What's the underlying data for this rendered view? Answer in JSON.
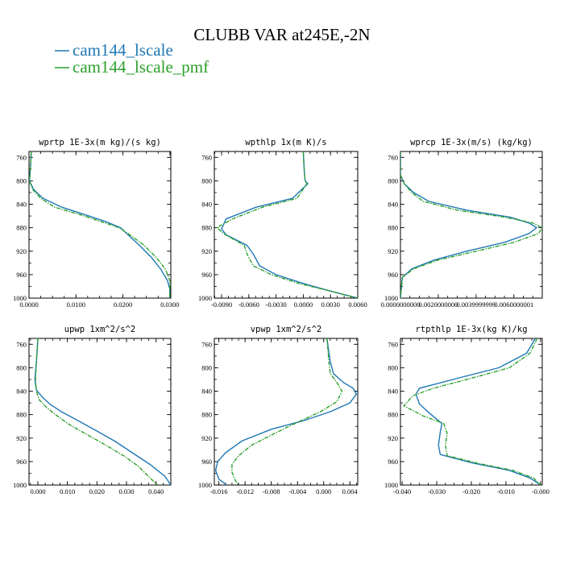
{
  "figure": {
    "title": "CLUBB VAR at245E,-2N",
    "legend": [
      {
        "label": "cam144_lscale",
        "color": "#1f77b4"
      },
      {
        "label": "cam144_lscale_pmf",
        "color": "#2ca02c"
      }
    ]
  },
  "chart_data": [
    {
      "type": "line",
      "title": "wprtp  1E-3x(m kg)/(s kg)",
      "xlim": [
        0.0,
        0.0302
      ],
      "ylim": [
        1000,
        750
      ],
      "y_inverted": true,
      "xticks": [
        0.0,
        0.01,
        0.02,
        0.03
      ],
      "xtick_labels": [
        "0.0000",
        "0.0100",
        "0.0200",
        "0.0300"
      ],
      "yticks": [
        760,
        800,
        840,
        880,
        920,
        960,
        1000
      ],
      "ytick_labels": [
        "760",
        "800",
        "840",
        "880",
        "920",
        "960",
        "1000"
      ],
      "series": [
        {
          "name": "cam144_lscale",
          "color": "#1f77b4",
          "dash": false,
          "points": [
            [
              0.0005,
              750
            ],
            [
              0.0003,
              780
            ],
            [
              0.0001,
              800
            ],
            [
              0.001,
              815
            ],
            [
              0.003,
              830
            ],
            [
              0.007,
              845
            ],
            [
              0.012,
              858
            ],
            [
              0.0165,
              870
            ],
            [
              0.0195,
              880
            ],
            [
              0.0215,
              895
            ],
            [
              0.0235,
              910
            ],
            [
              0.026,
              930
            ],
            [
              0.028,
              950
            ],
            [
              0.0295,
              970
            ],
            [
              0.03,
              985
            ],
            [
              0.03,
              1000
            ]
          ]
        },
        {
          "name": "cam144_lscale_pmf",
          "color": "#2ca02c",
          "dash": true,
          "points": [
            [
              0.0005,
              750
            ],
            [
              0.0003,
              780
            ],
            [
              0.0001,
              800
            ],
            [
              0.0008,
              815
            ],
            [
              0.0025,
              830
            ],
            [
              0.0055,
              845
            ],
            [
              0.011,
              858
            ],
            [
              0.0155,
              870
            ],
            [
              0.0192,
              880
            ],
            [
              0.022,
              895
            ],
            [
              0.0245,
              910
            ],
            [
              0.027,
              930
            ],
            [
              0.029,
              950
            ],
            [
              0.03,
              970
            ],
            [
              0.03,
              985
            ],
            [
              0.03,
              1000
            ]
          ]
        }
      ]
    },
    {
      "type": "line",
      "title": "wpthlp  1x(m K)/s",
      "xlim": [
        -0.0098,
        0.006
      ],
      "ylim": [
        1000,
        750
      ],
      "y_inverted": true,
      "xticks": [
        -0.009,
        -0.006,
        -0.003,
        0.0,
        0.003,
        0.006
      ],
      "xtick_labels": [
        "-0.0090",
        "-0.0060",
        "-0.0030",
        "0.0000",
        "0.0030",
        "0.0060"
      ],
      "yticks": [
        760,
        800,
        840,
        880,
        920,
        960,
        1000
      ],
      "ytick_labels": [
        "760",
        "800",
        "840",
        "880",
        "920",
        "960",
        "1000"
      ],
      "series": [
        {
          "name": "cam144_lscale",
          "color": "#1f77b4",
          "dash": false,
          "points": [
            [
              0.0,
              750
            ],
            [
              0.0001,
              780
            ],
            [
              0.0002,
              800
            ],
            [
              0.0005,
              805
            ],
            [
              -0.0012,
              830
            ],
            [
              -0.0052,
              845
            ],
            [
              -0.0085,
              865
            ],
            [
              -0.009,
              882
            ],
            [
              -0.0085,
              892
            ],
            [
              -0.0062,
              910
            ],
            [
              -0.0055,
              925
            ],
            [
              -0.0048,
              945
            ],
            [
              -0.003,
              960
            ],
            [
              0.0,
              975
            ],
            [
              0.003,
              988
            ],
            [
              0.006,
              1000
            ]
          ]
        },
        {
          "name": "cam144_lscale_pmf",
          "color": "#2ca02c",
          "dash": true,
          "points": [
            [
              0.0,
              750
            ],
            [
              0.0001,
              780
            ],
            [
              0.0002,
              800
            ],
            [
              0.0004,
              805
            ],
            [
              -0.0007,
              830
            ],
            [
              -0.0045,
              845
            ],
            [
              -0.0078,
              865
            ],
            [
              -0.0095,
              880
            ],
            [
              -0.0088,
              890
            ],
            [
              -0.0065,
              910
            ],
            [
              -0.0062,
              925
            ],
            [
              -0.0055,
              945
            ],
            [
              -0.0035,
              960
            ],
            [
              -0.0005,
              975
            ],
            [
              0.003,
              988
            ],
            [
              0.006,
              1000
            ]
          ]
        }
      ]
    },
    {
      "type": "line",
      "title": "wprcp  1E-3x(m/s) (kg/kg)",
      "xlim": [
        0.0,
        0.0075
      ],
      "ylim": [
        1000,
        750
      ],
      "y_inverted": true,
      "xticks": [
        0.0,
        0.002,
        0.004,
        0.006
      ],
      "xtick_labels": [
        "0.0000000000",
        "0.0020000000",
        "0.0039999999",
        "0.0060000001"
      ],
      "yticks": [
        760,
        800,
        840,
        880,
        920,
        960,
        1000
      ],
      "ytick_labels": [
        "760",
        "800",
        "840",
        "880",
        "920",
        "960",
        "1000"
      ],
      "series": [
        {
          "name": "cam144_lscale",
          "color": "#1f77b4",
          "dash": false,
          "points": [
            [
              0.0,
              750
            ],
            [
              0.0,
              790
            ],
            [
              0.0002,
              805
            ],
            [
              0.0007,
              820
            ],
            [
              0.0015,
              835
            ],
            [
              0.0035,
              850
            ],
            [
              0.0058,
              862
            ],
            [
              0.0068,
              872
            ],
            [
              0.0072,
              880
            ],
            [
              0.0068,
              890
            ],
            [
              0.0055,
              905
            ],
            [
              0.0035,
              920
            ],
            [
              0.0018,
              935
            ],
            [
              0.0006,
              950
            ],
            [
              0.0001,
              965
            ],
            [
              0.0,
              1000
            ]
          ]
        },
        {
          "name": "cam144_lscale_pmf",
          "color": "#2ca02c",
          "dash": true,
          "points": [
            [
              0.0,
              750
            ],
            [
              0.0,
              790
            ],
            [
              0.0002,
              805
            ],
            [
              0.0006,
              820
            ],
            [
              0.0012,
              835
            ],
            [
              0.003,
              850
            ],
            [
              0.0055,
              862
            ],
            [
              0.007,
              872
            ],
            [
              0.0075,
              880
            ],
            [
              0.0073,
              890
            ],
            [
              0.006,
              905
            ],
            [
              0.004,
              920
            ],
            [
              0.002,
              935
            ],
            [
              0.0007,
              950
            ],
            [
              0.0001,
              965
            ],
            [
              0.0,
              1000
            ]
          ]
        }
      ]
    },
    {
      "type": "line",
      "title": "upwp  1xm^2/s^2",
      "xlim": [
        -0.003,
        0.045
      ],
      "ylim": [
        1000,
        750
      ],
      "y_inverted": true,
      "xticks": [
        0.0,
        0.01,
        0.02,
        0.03,
        0.04
      ],
      "xtick_labels": [
        "0.000",
        "0.010",
        "0.020",
        "0.030",
        "0.040"
      ],
      "yticks": [
        760,
        800,
        840,
        880,
        920,
        960,
        1000
      ],
      "ytick_labels": [
        "760",
        "800",
        "840",
        "880",
        "920",
        "960",
        "1000"
      ],
      "series": [
        {
          "name": "cam144_lscale",
          "color": "#1f77b4",
          "dash": false,
          "points": [
            [
              0.0,
              750
            ],
            [
              -0.0005,
              790
            ],
            [
              -0.001,
              820
            ],
            [
              -0.0005,
              838
            ],
            [
              0.0015,
              850
            ],
            [
              0.004,
              862
            ],
            [
              0.008,
              875
            ],
            [
              0.0135,
              890
            ],
            [
              0.02,
              908
            ],
            [
              0.026,
              925
            ],
            [
              0.032,
              945
            ],
            [
              0.038,
              965
            ],
            [
              0.043,
              985
            ],
            [
              0.045,
              1000
            ]
          ]
        },
        {
          "name": "cam144_lscale_pmf",
          "color": "#2ca02c",
          "dash": true,
          "points": [
            [
              0.0,
              750
            ],
            [
              -0.0005,
              790
            ],
            [
              -0.0008,
              820
            ],
            [
              -0.0005,
              840
            ],
            [
              0.0005,
              855
            ],
            [
              0.003,
              868
            ],
            [
              0.0065,
              882
            ],
            [
              0.011,
              898
            ],
            [
              0.017,
              915
            ],
            [
              0.023,
              932
            ],
            [
              0.029,
              950
            ],
            [
              0.034,
              968
            ],
            [
              0.038,
              988
            ],
            [
              0.0405,
              1000
            ]
          ]
        }
      ]
    },
    {
      "type": "line",
      "title": "vpwp  1xm^2/s^2",
      "xlim": [
        -0.0167,
        0.0052
      ],
      "ylim": [
        1000,
        750
      ],
      "y_inverted": true,
      "xticks": [
        -0.016,
        -0.012,
        -0.008,
        -0.004,
        0.0,
        0.004
      ],
      "xtick_labels": [
        "-0.016",
        "-0.012",
        "-0.008",
        "-0.004",
        "0.000",
        "0.004"
      ],
      "yticks": [
        760,
        800,
        840,
        880,
        920,
        960,
        1000
      ],
      "ytick_labels": [
        "760",
        "800",
        "840",
        "880",
        "920",
        "960",
        "1000"
      ],
      "series": [
        {
          "name": "cam144_lscale",
          "color": "#1f77b4",
          "dash": false,
          "points": [
            [
              0.0005,
              750
            ],
            [
              0.001,
              790
            ],
            [
              0.0015,
              810
            ],
            [
              0.003,
              825
            ],
            [
              0.0045,
              835
            ],
            [
              0.005,
              845
            ],
            [
              0.004,
              860
            ],
            [
              0.001,
              875
            ],
            [
              -0.003,
              890
            ],
            [
              -0.008,
              905
            ],
            [
              -0.0125,
              925
            ],
            [
              -0.015,
              945
            ],
            [
              -0.0162,
              960
            ],
            [
              -0.0165,
              975
            ],
            [
              -0.016,
              990
            ],
            [
              -0.0148,
              1000
            ]
          ]
        },
        {
          "name": "cam144_lscale_pmf",
          "color": "#2ca02c",
          "dash": true,
          "points": [
            [
              0.0005,
              750
            ],
            [
              0.0008,
              790
            ],
            [
              0.001,
              810
            ],
            [
              0.002,
              825
            ],
            [
              0.0028,
              840
            ],
            [
              0.002,
              858
            ],
            [
              -0.0005,
              875
            ],
            [
              -0.004,
              893
            ],
            [
              -0.0075,
              912
            ],
            [
              -0.011,
              932
            ],
            [
              -0.013,
              950
            ],
            [
              -0.014,
              965
            ],
            [
              -0.014,
              978
            ],
            [
              -0.0135,
              992
            ],
            [
              -0.013,
              1000
            ]
          ]
        }
      ]
    },
    {
      "type": "line",
      "title": "rtpthlp  1E-3x(kg K)/kg",
      "xlim": [
        -0.0405,
        0.0005
      ],
      "ylim": [
        1000,
        750
      ],
      "y_inverted": true,
      "xticks": [
        -0.04,
        -0.03,
        -0.02,
        -0.01,
        0.0
      ],
      "xtick_labels": [
        "-0.040",
        "-0.030",
        "-0.020",
        "-0.010",
        "-0.000"
      ],
      "yticks": [
        760,
        800,
        840,
        880,
        920,
        960,
        1000
      ],
      "ytick_labels": [
        "760",
        "800",
        "840",
        "880",
        "920",
        "960",
        "1000"
      ],
      "series": [
        {
          "name": "cam144_lscale",
          "color": "#1f77b4",
          "dash": false,
          "points": [
            [
              -0.0015,
              750
            ],
            [
              -0.004,
              775
            ],
            [
              -0.012,
              800
            ],
            [
              -0.024,
              818
            ],
            [
              -0.035,
              835
            ],
            [
              -0.036,
              845
            ],
            [
              -0.035,
              862
            ],
            [
              -0.032,
              878
            ],
            [
              -0.0285,
              895
            ],
            [
              -0.029,
              910
            ],
            [
              -0.0295,
              932
            ],
            [
              -0.029,
              948
            ],
            [
              -0.02,
              962
            ],
            [
              -0.009,
              975
            ],
            [
              -0.003,
              988
            ],
            [
              0.0,
              1000
            ]
          ]
        },
        {
          "name": "cam144_lscale_pmf",
          "color": "#2ca02c",
          "dash": true,
          "points": [
            [
              -0.001,
              750
            ],
            [
              -0.003,
              775
            ],
            [
              -0.009,
              800
            ],
            [
              -0.02,
              818
            ],
            [
              -0.031,
              835
            ],
            [
              -0.037,
              848
            ],
            [
              -0.0395,
              865
            ],
            [
              -0.034,
              882
            ],
            [
              -0.028,
              895
            ],
            [
              -0.027,
              912
            ],
            [
              -0.0275,
              932
            ],
            [
              -0.027,
              950
            ],
            [
              -0.018,
              963
            ],
            [
              -0.008,
              975
            ],
            [
              -0.002,
              988
            ],
            [
              0.0,
              1000
            ]
          ]
        }
      ]
    }
  ]
}
